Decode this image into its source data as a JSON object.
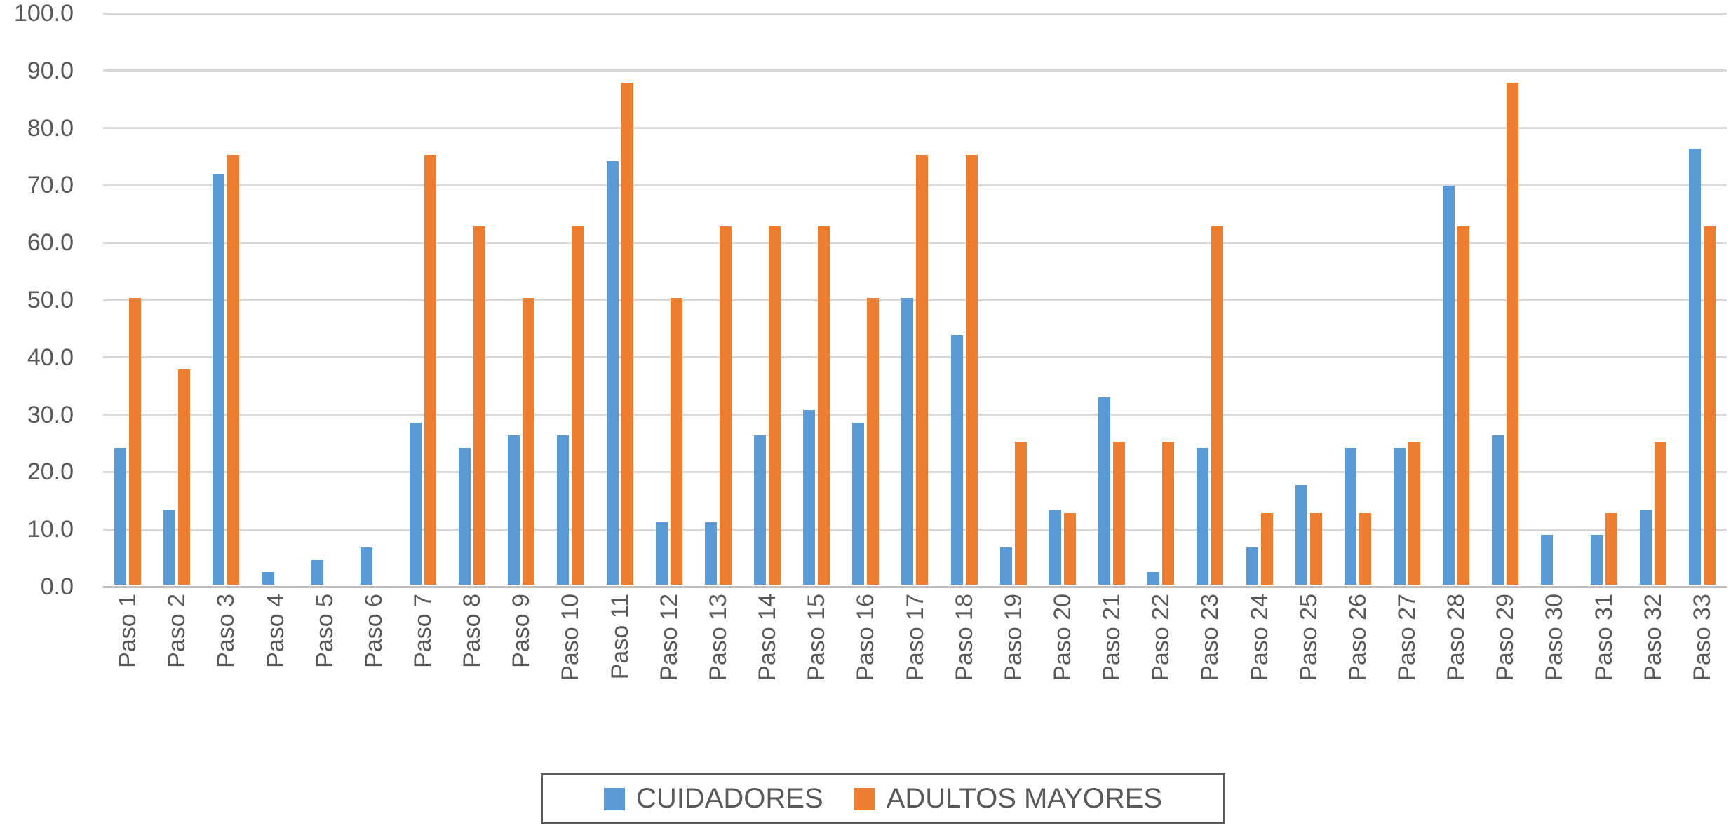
{
  "chart_data": {
    "type": "bar",
    "title": "",
    "categories": [
      "Paso 1",
      "Paso 2",
      "Paso 3",
      "Paso 4",
      "Paso 5",
      "Paso 6",
      "Paso 7",
      "Paso 8",
      "Paso 9",
      "Paso 10",
      "Paso 11",
      "Paso 12",
      "Paso 13",
      "Paso 14",
      "Paso 15",
      "Paso 16",
      "Paso 17",
      "Paso 18",
      "Paso 19",
      "Paso 20",
      "Paso 21",
      "Paso 22",
      "Paso 23",
      "Paso 24",
      "Paso 25",
      "Paso 26",
      "Paso 27",
      "Paso 28",
      "Paso 29",
      "Paso 30",
      "Paso 31",
      "Paso 32",
      "Paso 33"
    ],
    "series": [
      {
        "name": "CUIDADORES",
        "color": "#5B9BD5",
        "values": [
          23.9,
          13.0,
          71.7,
          2.2,
          4.3,
          6.5,
          28.3,
          23.9,
          26.1,
          26.1,
          73.9,
          10.9,
          10.9,
          26.1,
          30.4,
          28.3,
          50.0,
          43.5,
          6.5,
          13.0,
          32.6,
          2.2,
          23.9,
          6.5,
          17.4,
          23.9,
          23.9,
          69.6,
          26.1,
          8.7,
          8.7,
          13.0,
          76.1
        ]
      },
      {
        "name": "ADULTOS MAYORES",
        "color": "#ED7D31",
        "values": [
          50.0,
          37.5,
          75.0,
          0,
          0,
          0,
          75.0,
          62.5,
          50.0,
          62.5,
          87.5,
          50.0,
          62.5,
          62.5,
          62.5,
          50.0,
          75.0,
          75.0,
          25.0,
          12.5,
          25.0,
          25.0,
          62.5,
          12.5,
          12.5,
          12.5,
          25.0,
          62.5,
          87.5,
          0,
          12.5,
          25.0,
          62.5
        ]
      }
    ],
    "y_axis": {
      "min": 0,
      "max": 100,
      "step": 10,
      "tick_labels": [
        "100.0",
        "90.0",
        "80.0",
        "70.0",
        "60.0",
        "50.0",
        "40.0",
        "30.0",
        "20.0",
        "10.0",
        "0.0"
      ]
    },
    "x_axis": {
      "label_rotation": -90
    },
    "grid": true,
    "legend_position": "bottom"
  },
  "colors": {
    "gridline": "#D9D9D9",
    "axis_line": "#BFBFBF",
    "label_text": "#595959",
    "legend_border": "#595959",
    "background": "#FFFFFF"
  }
}
